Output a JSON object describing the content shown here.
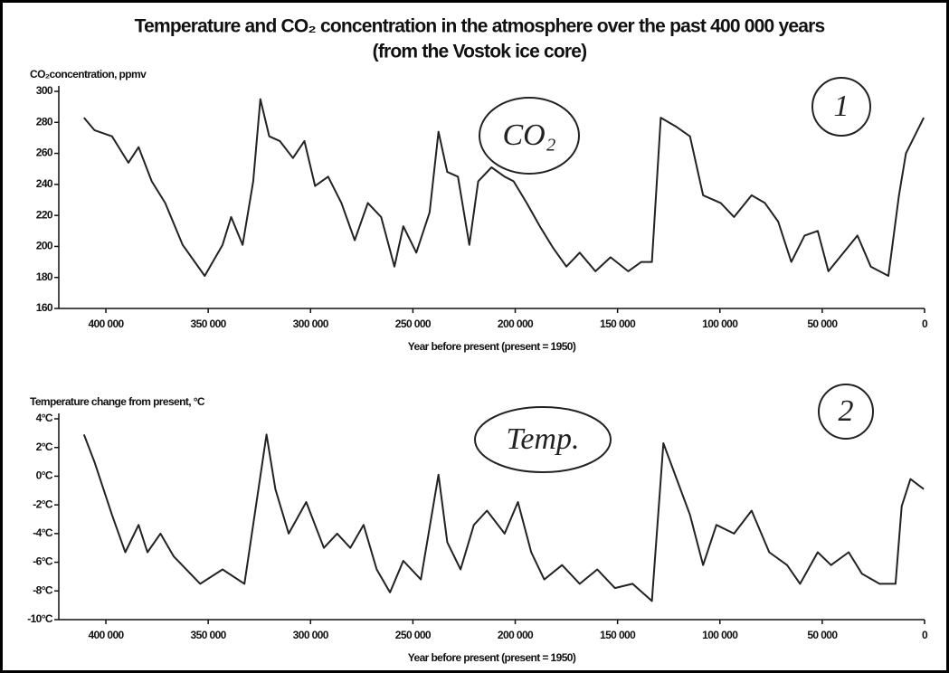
{
  "chart_data": [
    {
      "type": "line",
      "title": "Temperature and CO₂ concentration in the atmosphere over the past 400 000 years",
      "subtitle": "(from the Vostok ice core)",
      "y_label": "CO₂concentration, ppmv",
      "x_label": "Year before present (present = 1950)",
      "annotations": [
        "CO₂",
        "1"
      ],
      "color": "#222222",
      "x": [
        410700,
        405600,
        397000,
        389000,
        384000,
        377600,
        371000,
        362500,
        351700,
        343000,
        338800,
        333200,
        328000,
        324500,
        320200,
        315000,
        308600,
        303000,
        297800,
        291400,
        284900,
        278400,
        272000,
        265500,
        259000,
        254700,
        248300,
        241800,
        237500,
        233200,
        228000,
        222400,
        218100,
        211600,
        205200,
        200800,
        194400,
        188000,
        181500,
        175000,
        168500,
        160800,
        153400,
        144800,
        138400,
        133200,
        128900,
        121100,
        114600,
        108200,
        99600,
        93100,
        84500,
        78000,
        71500,
        65100,
        58600,
        52200,
        47000,
        41400,
        32800,
        26300,
        17700,
        12500,
        9100,
        400
      ],
      "values": [
        283,
        275,
        271,
        254,
        264,
        242,
        228,
        201,
        181,
        201,
        219,
        201,
        242,
        295,
        271,
        268,
        257,
        268,
        239,
        245,
        228,
        204,
        228,
        219,
        187,
        213,
        196,
        222,
        274,
        248,
        245,
        201,
        242,
        251,
        245,
        242,
        228,
        213,
        199,
        187,
        196,
        184,
        193,
        184,
        190,
        190,
        283,
        277,
        271,
        233,
        228,
        219,
        233,
        228,
        216,
        190,
        207,
        210,
        184,
        193,
        207,
        187,
        181,
        233,
        260,
        283
      ],
      "xlim": [
        423000,
        0
      ],
      "ylim": [
        160,
        300
      ],
      "xticks": [
        {
          "value": 400000,
          "label": "400 000"
        },
        {
          "value": 350000,
          "label": "350 000"
        },
        {
          "value": 300000,
          "label": "300 000"
        },
        {
          "value": 250000,
          "label": "250 000"
        },
        {
          "value": 200000,
          "label": "200 000"
        },
        {
          "value": 150000,
          "label": "150 000"
        },
        {
          "value": 100000,
          "label": "100 000"
        },
        {
          "value": 50000,
          "label": "50 000"
        },
        0
      ],
      "yticks": [
        160,
        180,
        200,
        220,
        240,
        260,
        280,
        300
      ]
    },
    {
      "type": "line",
      "y_label": "Temperature change from present, °C",
      "x_label": "Year before present (present = 1950)",
      "annotations": [
        "Temp.",
        "2"
      ],
      "color": "#222222",
      "x": [
        410700,
        405600,
        397000,
        390500,
        384000,
        379700,
        373300,
        366800,
        353900,
        343000,
        332300,
        321500,
        317200,
        310700,
        302100,
        293500,
        287000,
        280600,
        274100,
        267700,
        261200,
        254700,
        246100,
        237500,
        233200,
        226700,
        220200,
        213800,
        205200,
        198700,
        192200,
        185800,
        177100,
        168500,
        159900,
        151300,
        142700,
        133200,
        127600,
        121100,
        114600,
        108200,
        101700,
        93100,
        84500,
        75900,
        67200,
        60800,
        52200,
        45700,
        37100,
        30600,
        22000,
        14200,
        11200,
        6900,
        400
      ],
      "values": [
        2.9,
        1,
        -2.7,
        -5.3,
        -3.4,
        -5.3,
        -4,
        -5.6,
        -7.5,
        -6.5,
        -7.5,
        2.9,
        -0.9,
        -4,
        -1.8,
        -5,
        -4,
        -5,
        -3.4,
        -6.5,
        -8.1,
        -5.9,
        -7.2,
        0.1,
        -4.6,
        -6.5,
        -3.4,
        -2.4,
        -4,
        -1.8,
        -5.3,
        -7.2,
        -6.2,
        -7.5,
        -6.5,
        -7.8,
        -7.5,
        -8.7,
        2.3,
        -0.2,
        -2.7,
        -6.2,
        -3.4,
        -4,
        -2.4,
        -5.3,
        -6.2,
        -7.5,
        -5.3,
        -6.2,
        -5.3,
        -6.8,
        -7.5,
        -7.5,
        -2.1,
        -0.2,
        -0.9
      ],
      "xlim": [
        423000,
        0
      ],
      "ylim": [
        -10,
        4
      ],
      "xticks": [
        {
          "value": 400000,
          "label": "400 000"
        },
        {
          "value": 350000,
          "label": "350 000"
        },
        {
          "value": 300000,
          "label": "300 000"
        },
        {
          "value": 250000,
          "label": "250 000"
        },
        {
          "value": 200000,
          "label": "200 000"
        },
        {
          "value": 150000,
          "label": "150 000"
        },
        {
          "value": 100000,
          "label": "100 000"
        },
        {
          "value": 50000,
          "label": "50 000"
        },
        0
      ],
      "yticks": [
        {
          "value": 4,
          "label": "4°C"
        },
        {
          "value": 2,
          "label": "2°C"
        },
        {
          "value": 0,
          "label": "0°C"
        },
        {
          "value": -2,
          "label": "-2°C"
        },
        {
          "value": -4,
          "label": "-4°C"
        },
        {
          "value": -6,
          "label": "-6°C"
        },
        {
          "value": -8,
          "label": "-8°C"
        },
        {
          "value": -10,
          "label": "-10°C"
        }
      ]
    }
  ]
}
